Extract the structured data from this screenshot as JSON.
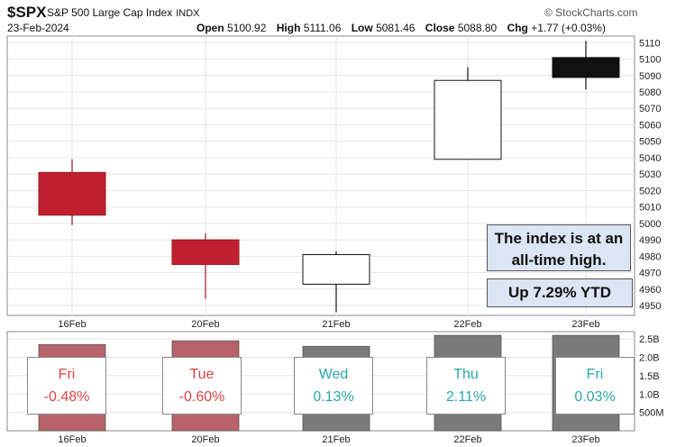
{
  "header": {
    "symbol": "$SPX",
    "name": "S&P 500 Large Cap Index",
    "exchange": "INDX",
    "brand": "© StockCharts.com",
    "date": "23-Feb-2024",
    "ohlc": [
      {
        "label": "Open",
        "value": "5100.92"
      },
      {
        "label": "High",
        "value": "5111.06"
      },
      {
        "label": "Low",
        "value": "5081.46"
      },
      {
        "label": "Close",
        "value": "5088.80"
      },
      {
        "label": "Chg",
        "value": "+1.77 (+0.03%)"
      }
    ]
  },
  "callouts": {
    "line1": "The index is at an",
    "line2": "all-time high.",
    "ytd": "Up 7.29% YTD"
  },
  "chart_data": {
    "type": "candlestick",
    "categories": [
      "16Feb",
      "20Feb",
      "21Feb",
      "22Feb",
      "23Feb"
    ],
    "candles": [
      {
        "date": "16Feb",
        "open": 5031,
        "high": 5039,
        "low": 4999,
        "close": 5005,
        "color": "#c0202e"
      },
      {
        "date": "20Feb",
        "open": 4990,
        "high": 4994,
        "low": 4954,
        "close": 4975,
        "color": "#c0202e"
      },
      {
        "date": "21Feb",
        "open": 4963,
        "high": 4983,
        "low": 4946,
        "close": 4981,
        "color": "#ffffff"
      },
      {
        "date": "22Feb",
        "open": 5039,
        "high": 5095,
        "low": 5039,
        "close": 5087,
        "color": "#ffffff"
      },
      {
        "date": "23Feb",
        "open": 5100.92,
        "high": 5111.06,
        "low": 5081.46,
        "close": 5088.8,
        "color": "#111111"
      }
    ],
    "price_axis": {
      "ylim": [
        4944,
        5114
      ],
      "ticks": [
        4950,
        4960,
        4970,
        4980,
        4990,
        5000,
        5010,
        5020,
        5030,
        5040,
        5050,
        5060,
        5070,
        5080,
        5090,
        5100,
        5110
      ]
    },
    "volume": {
      "values": [
        2.35,
        2.45,
        2.3,
        2.6,
        2.6
      ],
      "colors": [
        "#b8636c",
        "#b8636c",
        "#7a7a7a",
        "#7a7a7a",
        "#7a7a7a"
      ],
      "ylim": [
        0,
        2.7
      ],
      "ticks": [
        {
          "v": 0.5,
          "label": "500M"
        },
        {
          "v": 1.0,
          "label": "1.0B"
        },
        {
          "v": 1.5,
          "label": "1.5B"
        },
        {
          "v": 2.0,
          "label": "2.0B"
        },
        {
          "v": 2.5,
          "label": "2.5B"
        }
      ]
    },
    "day_changes": [
      {
        "day": "Fri",
        "change": "-0.48%",
        "color": "#e04444"
      },
      {
        "day": "Tue",
        "change": "-0.60%",
        "color": "#e04444"
      },
      {
        "day": "Wed",
        "change": "0.13%",
        "color": "#2aa6a6"
      },
      {
        "day": "Thu",
        "change": "2.11%",
        "color": "#2aa6a6"
      },
      {
        "day": "Fri",
        "change": "0.03%",
        "color": "#2aa6a6"
      }
    ]
  }
}
